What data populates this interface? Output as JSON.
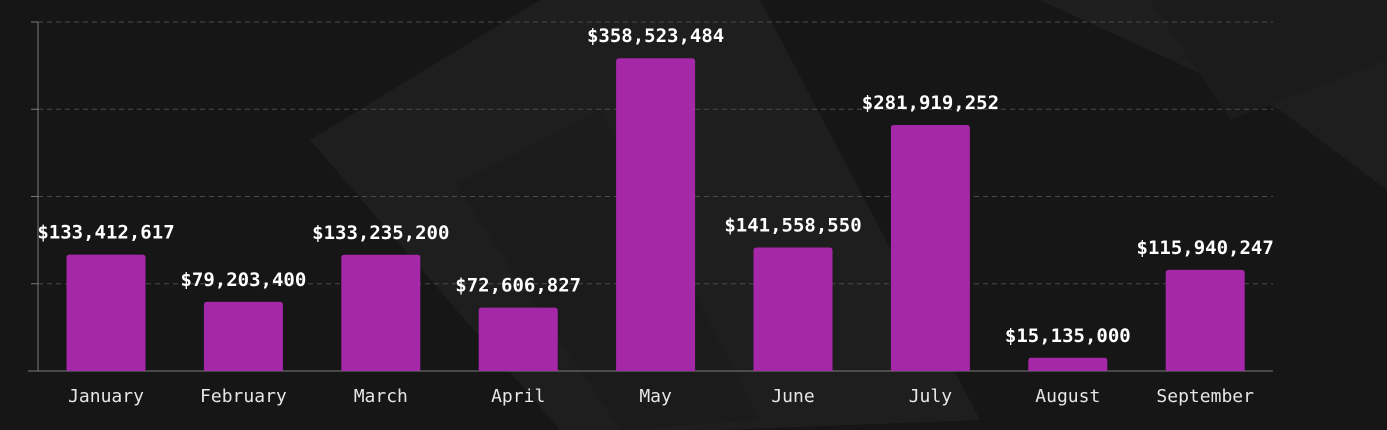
{
  "chart_data": {
    "type": "bar",
    "title": "",
    "xlabel": "",
    "ylabel": "",
    "categories": [
      "January",
      "February",
      "March",
      "April",
      "May",
      "June",
      "July",
      "August",
      "September"
    ],
    "values": [
      133412617,
      79203400,
      133235200,
      72606827,
      358523484,
      141558550,
      281919252,
      15135000,
      115940247
    ],
    "value_labels": [
      "$133,412,617",
      "$79,203,400",
      "$133,235,200",
      "$72,606,827",
      "$358,523,484",
      "$141,558,550",
      "$281,919,252",
      "$15,135,000",
      "$115,940,247"
    ],
    "ylim": [
      0,
      400000000
    ],
    "y_ticks": [
      0,
      100000000,
      200000000,
      300000000,
      400000000
    ],
    "y_tick_labels_visible": false,
    "grid": true,
    "legend": "none"
  },
  "colors": {
    "bar": "#a428a8",
    "background": "#161616",
    "grid": "#4a4a4a",
    "axis": "#7a7a7a",
    "value_text": "#ffffff",
    "category_text": "#e6e6e6"
  }
}
